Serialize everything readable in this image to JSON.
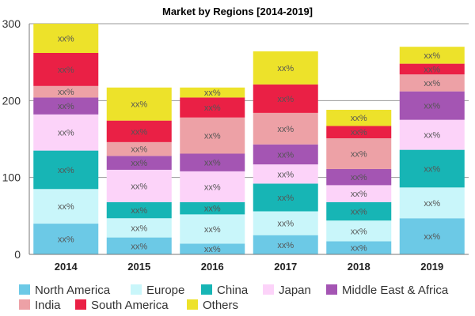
{
  "chart_data": {
    "type": "bar",
    "stacked": true,
    "title": "Market by Regions [2014-2019]",
    "xlabel": "",
    "ylabel": "",
    "categories": [
      "2014",
      "2015",
      "2016",
      "2017",
      "2018",
      "2019"
    ],
    "ylim": [
      0,
      300
    ],
    "yticks": [
      "0",
      "100",
      "200",
      "300"
    ],
    "grid": "horizontal",
    "legend_position": "bottom",
    "segment_label": "xx%",
    "series": [
      {
        "name": "North America",
        "color": "#6cc9e6",
        "values": [
          40,
          22,
          14,
          25,
          17,
          47
        ]
      },
      {
        "name": "Europe",
        "color": "#c9f6fa",
        "values": [
          45,
          25,
          38,
          31,
          27,
          40
        ]
      },
      {
        "name": "China",
        "color": "#17b5b5",
        "values": [
          50,
          21,
          16,
          36,
          24,
          49
        ]
      },
      {
        "name": "Japan",
        "color": "#fcd3f9",
        "values": [
          47,
          42,
          40,
          25,
          22,
          39
        ]
      },
      {
        "name": "Middle East & Africa",
        "color": "#a455b3",
        "values": [
          22,
          18,
          23,
          26,
          21,
          37
        ]
      },
      {
        "name": "India",
        "color": "#eda1a6",
        "values": [
          15,
          18,
          47,
          41,
          40,
          22
        ]
      },
      {
        "name": "South America",
        "color": "#ea2045",
        "values": [
          43,
          28,
          26,
          37,
          16,
          14
        ]
      },
      {
        "name": "Others",
        "color": "#ede22a",
        "values": [
          38,
          43,
          13,
          43,
          21,
          22
        ]
      }
    ]
  }
}
